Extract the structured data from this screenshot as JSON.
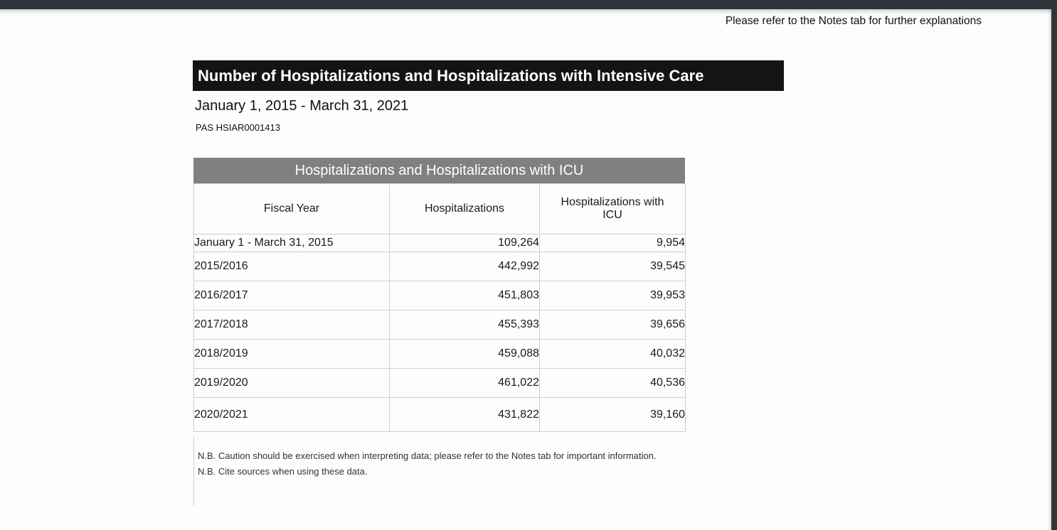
{
  "page": {
    "top_note": "Please refer to the Notes tab for further explanations",
    "title": "Number of Hospitalizations and Hospitalizations with Intensive Care",
    "subtitle": "January 1, 2015 - March 31, 2021",
    "ref_code": "PAS HSIAR0001413",
    "notes": [
      "N.B. Caution should be exercised when interpreting data; please refer to the Notes tab for important information.",
      "N.B. Cite sources when using these data."
    ]
  },
  "chart_data": {
    "type": "table",
    "title": "Hospitalizations and Hospitalizations with ICU",
    "columns": [
      "Fiscal Year",
      "Hospitalizations",
      "Hospitalizations with ICU"
    ],
    "rows": [
      [
        "January 1 - March 31, 2015",
        "109,264",
        "9,954"
      ],
      [
        "2015/2016",
        "442,992",
        "39,545"
      ],
      [
        "2016/2017",
        "451,803",
        "39,953"
      ],
      [
        "2017/2018",
        "455,393",
        "39,656"
      ],
      [
        "2018/2019",
        "459,088",
        "40,032"
      ],
      [
        "2019/2020",
        "461,022",
        "40,536"
      ],
      [
        "2020/2021",
        "431,822",
        "39,160"
      ]
    ]
  },
  "colors": {
    "chrome": "#2f343a",
    "titlebar": "#141414",
    "tableheader": "#808080",
    "tableborder": "#cfcfcf"
  }
}
